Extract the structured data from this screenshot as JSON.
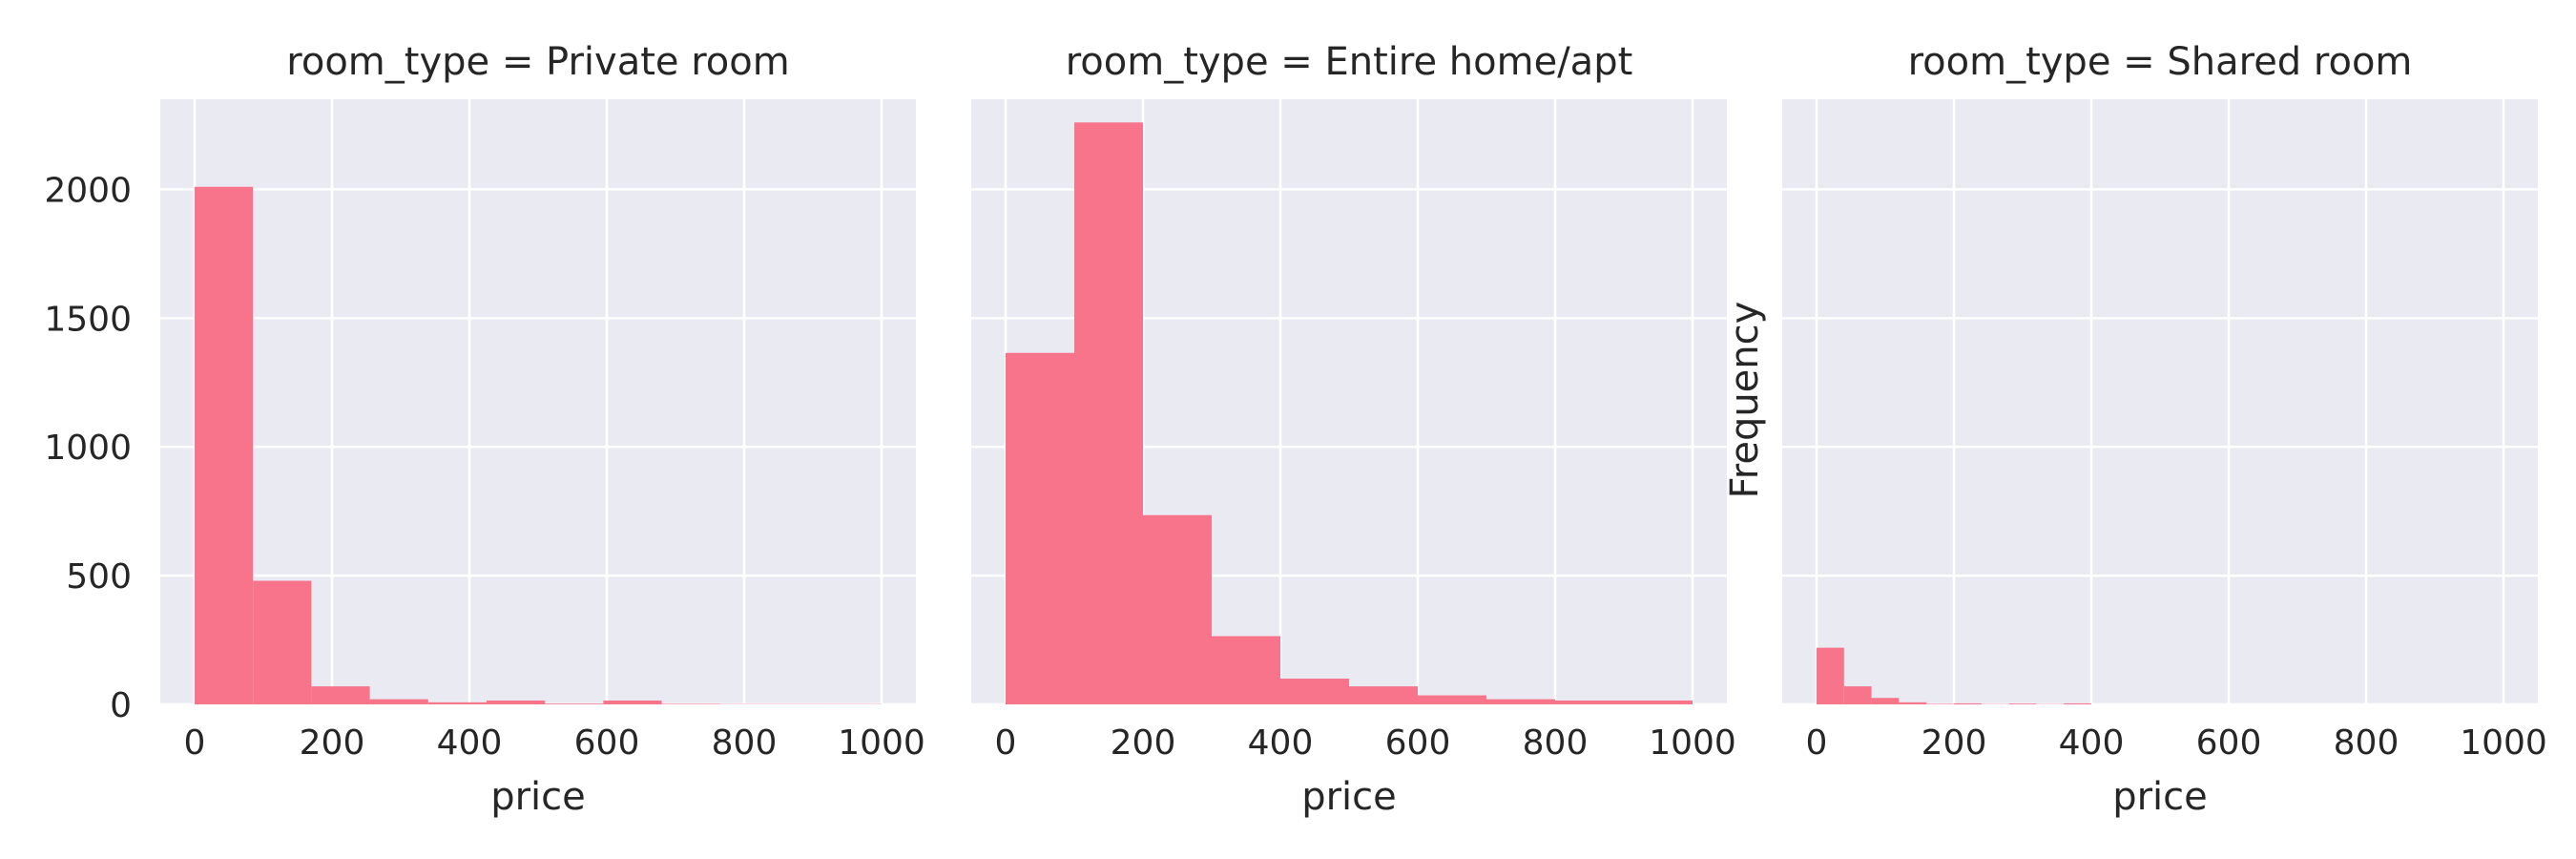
{
  "chart_data": [
    {
      "type": "bar",
      "panel_title": "room_type = Private room",
      "xlabel": "price",
      "ylabel": "",
      "xlim": [
        -50,
        1050
      ],
      "ylim": [
        0,
        2350
      ],
      "xticks": [
        0,
        200,
        400,
        600,
        800,
        1000
      ],
      "yticks": [
        0,
        500,
        1000,
        1500,
        2000
      ],
      "bin_edges": [
        0,
        85,
        170,
        255,
        340,
        425,
        510,
        595,
        680,
        765,
        850,
        935,
        1000
      ],
      "counts": [
        2010,
        480,
        70,
        20,
        8,
        15,
        3,
        15,
        2,
        1,
        1,
        1
      ]
    },
    {
      "type": "bar",
      "panel_title": "room_type = Entire home/apt",
      "xlabel": "price",
      "ylabel": "",
      "xlim": [
        -50,
        1050
      ],
      "ylim": [
        0,
        2350
      ],
      "xticks": [
        0,
        200,
        400,
        600,
        800,
        1000
      ],
      "yticks": [
        0,
        500,
        1000,
        1500,
        2000
      ],
      "bin_edges": [
        0,
        100,
        200,
        300,
        400,
        500,
        600,
        700,
        800,
        900,
        1000
      ],
      "counts": [
        1365,
        2260,
        735,
        265,
        100,
        70,
        35,
        20,
        15,
        15
      ]
    },
    {
      "type": "bar",
      "panel_title": "room_type = Shared room",
      "xlabel": "price",
      "ylabel": "Frequency",
      "xlim": [
        -50,
        1050
      ],
      "ylim": [
        0,
        2350
      ],
      "xticks": [
        0,
        200,
        400,
        600,
        800,
        1000
      ],
      "yticks": [
        0,
        500,
        1000,
        1500,
        2000
      ],
      "bin_edges": [
        0,
        40,
        80,
        120,
        160,
        200,
        240,
        280,
        320,
        360,
        400
      ],
      "counts": [
        220,
        70,
        25,
        8,
        2,
        4,
        1,
        3,
        1,
        4
      ]
    }
  ]
}
